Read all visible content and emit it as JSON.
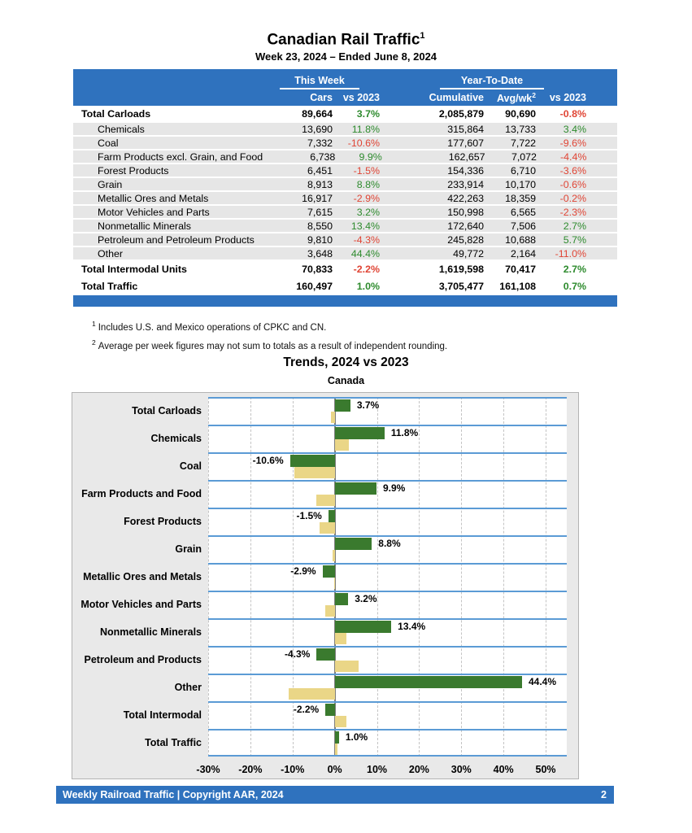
{
  "page": {
    "title": "Canadian Rail Traffic",
    "title_footnote": "1",
    "subtitle": "Week 23, 2024 – Ended June 8, 2024"
  },
  "table": {
    "group_this_week": "This Week",
    "group_ytd": "Year-To-Date",
    "col_cars": "Cars",
    "col_vs2023_week": "vs 2023",
    "col_cumulative": "Cumulative",
    "col_avgwk": "Avg/wk",
    "col_avgwk_sup": "2",
    "col_vs2023_ytd": "vs 2023",
    "rows": [
      {
        "label": "Total Carloads",
        "total": true,
        "cars": "89,664",
        "wk_pct": "3.7%",
        "cum": "2,085,879",
        "avg": "90,690",
        "ytd_pct": "-0.8%"
      },
      {
        "label": "Chemicals",
        "total": false,
        "cars": "13,690",
        "wk_pct": "11.8%",
        "cum": "315,864",
        "avg": "13,733",
        "ytd_pct": "3.4%"
      },
      {
        "label": "Coal",
        "total": false,
        "cars": "7,332",
        "wk_pct": "-10.6%",
        "cum": "177,607",
        "avg": "7,722",
        "ytd_pct": "-9.6%"
      },
      {
        "label": "Farm Products excl. Grain, and Food",
        "total": false,
        "cars": "6,738",
        "wk_pct": "9.9%",
        "cum": "162,657",
        "avg": "7,072",
        "ytd_pct": "-4.4%"
      },
      {
        "label": "Forest Products",
        "total": false,
        "cars": "6,451",
        "wk_pct": "-1.5%",
        "cum": "154,336",
        "avg": "6,710",
        "ytd_pct": "-3.6%"
      },
      {
        "label": "Grain",
        "total": false,
        "cars": "8,913",
        "wk_pct": "8.8%",
        "cum": "233,914",
        "avg": "10,170",
        "ytd_pct": "-0.6%"
      },
      {
        "label": "Metallic Ores and Metals",
        "total": false,
        "cars": "16,917",
        "wk_pct": "-2.9%",
        "cum": "422,263",
        "avg": "18,359",
        "ytd_pct": "-0.2%"
      },
      {
        "label": "Motor Vehicles and Parts",
        "total": false,
        "cars": "7,615",
        "wk_pct": "3.2%",
        "cum": "150,998",
        "avg": "6,565",
        "ytd_pct": "-2.3%"
      },
      {
        "label": "Nonmetallic Minerals",
        "total": false,
        "cars": "8,550",
        "wk_pct": "13.4%",
        "cum": "172,640",
        "avg": "7,506",
        "ytd_pct": "2.7%"
      },
      {
        "label": "Petroleum and Petroleum Products",
        "total": false,
        "cars": "9,810",
        "wk_pct": "-4.3%",
        "cum": "245,828",
        "avg": "10,688",
        "ytd_pct": "5.7%"
      },
      {
        "label": "Other",
        "total": false,
        "cars": "3,648",
        "wk_pct": "44.4%",
        "cum": "49,772",
        "avg": "2,164",
        "ytd_pct": "-11.0%"
      },
      {
        "label": "Total Intermodal Units",
        "total": true,
        "cars": "70,833",
        "wk_pct": "-2.2%",
        "cum": "1,619,598",
        "avg": "70,417",
        "ytd_pct": "2.7%"
      },
      {
        "label": "Total Traffic",
        "total": true,
        "cars": "160,497",
        "wk_pct": "1.0%",
        "cum": "3,705,477",
        "avg": "161,108",
        "ytd_pct": "0.7%"
      }
    ]
  },
  "footnotes": [
    {
      "marker": "1",
      "text": "Includes U.S. and Mexico operations of CPKC and CN."
    },
    {
      "marker": "2",
      "text": "Average per week figures may not sum to totals as a result of independent rounding."
    }
  ],
  "chart_data": {
    "type": "bar",
    "orientation": "horizontal",
    "title": "Trends, 2024 vs 2023",
    "subtitle": "Canada",
    "categories": [
      "Total Carloads",
      "Chemicals",
      "Coal",
      "Farm Products and Food",
      "Forest Products",
      "Grain",
      "Metallic Ores and Metals",
      "Motor Vehicles and Parts",
      "Nonmetallic Minerals",
      "Petroleum and Products",
      "Other",
      "Total Intermodal",
      "Total Traffic"
    ],
    "series": [
      {
        "name": "This Week",
        "color": "#3A7A2E",
        "values": [
          3.7,
          11.8,
          -10.6,
          9.9,
          -1.5,
          8.8,
          -2.9,
          3.2,
          13.4,
          -4.3,
          44.4,
          -2.2,
          1.0
        ]
      },
      {
        "name": "Year-To-Date",
        "color": "#EAD687",
        "values": [
          -0.8,
          3.4,
          -9.6,
          -4.4,
          -3.6,
          -0.6,
          -0.2,
          -2.3,
          2.7,
          5.7,
          -11.0,
          2.7,
          0.7
        ]
      }
    ],
    "bar_labels": [
      "3.7%",
      "11.8%",
      "-10.6%",
      "9.9%",
      "-1.5%",
      "8.8%",
      "-2.9%",
      "3.2%",
      "13.4%",
      "-4.3%",
      "44.4%",
      "-2.2%",
      "1.0%"
    ],
    "xtick_values": [
      -30,
      -20,
      -10,
      0,
      10,
      20,
      30,
      40,
      50
    ],
    "xtick_labels": [
      "-30%",
      "-20%",
      "-10%",
      "0%",
      "10%",
      "20%",
      "30%",
      "40%",
      "50%"
    ],
    "xlim": [
      -30,
      55
    ],
    "grid": true,
    "legend_position": "top-left-inside"
  },
  "footer": {
    "text": "Weekly Railroad Traffic | Copyright AAR, 2024",
    "page_number": "2"
  },
  "colors": {
    "header_blue": "#2F72BE",
    "row_separator_blue": "#5B9BD5",
    "positive_green": "#2E8B2E",
    "negative_red": "#E04535",
    "bar_green": "#3A7A2E",
    "bar_tan": "#EAD687",
    "row_gray": "#E6E6E6",
    "chart_bg": "#E9E9E9"
  }
}
